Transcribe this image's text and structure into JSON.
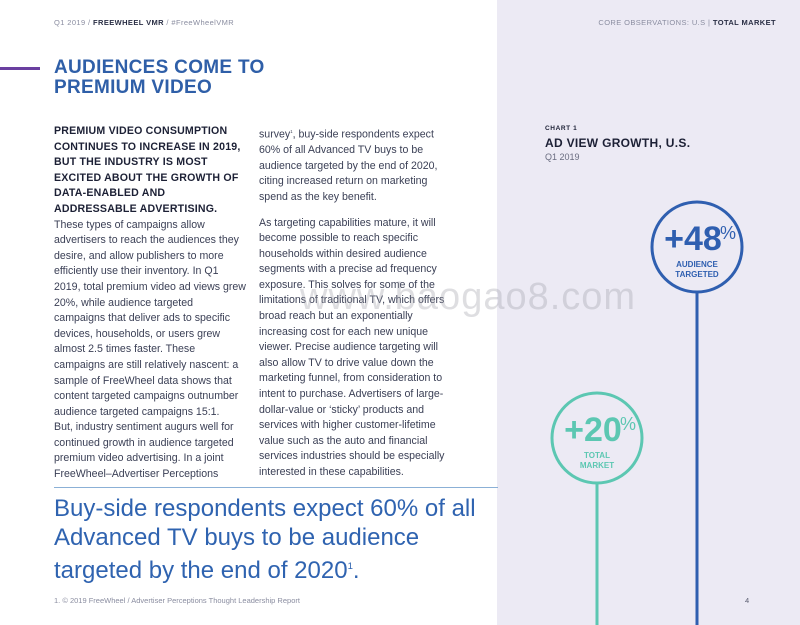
{
  "header": {
    "left_prefix": "Q1 2019 / ",
    "left_brand": "FREEWHEEL VMR",
    "left_suffix": " / #FreeWheelVMR",
    "right_prefix": "CORE OBSERVATIONS: U.S  |  ",
    "right_bold": "TOTAL MARKET"
  },
  "headline": "AUDIENCES COME TO PREMIUM VIDEO",
  "column1": {
    "lead": "PREMIUM VIDEO CONSUMPTION CONTINUES TO INCREASE IN 2019, BUT THE INDUSTRY IS MOST EXCITED ABOUT THE GROWTH OF DATA-ENABLED AND ADDRESSABLE ADVERTISING.",
    "body1": " These types of campaigns allow advertisers to reach the audiences they desire, and allow publishers to more efficiently use their inventory. In Q1 2019, total premium video ad views grew 20%, while audience targeted campaigns that deliver ads to specific devices, households, or users grew almost 2.5 times faster. These campaigns are still relatively nascent: a sample of FreeWheel data shows that content targeted campaigns outnumber audience targeted campaigns 15:1.",
    "body2": "But, industry sentiment augurs well for continued growth in audience targeted premium video advertising. In a joint FreeWheel–Advertiser Perceptions"
  },
  "column2": {
    "p1_a": "survey",
    "p1_sup": "1",
    "p1_b": ", buy-side respondents expect 60% of all Advanced TV buys to be audience targeted by the end of 2020, citing increased return on marketing spend as the key benefit.",
    "p2": "As targeting capabilities mature, it will become possible to reach specific households within desired audience segments with a precise ad frequency exposure. This solves for some of the limitations of traditional TV, which offers broad reach but an exponentially increasing cost for each new unique viewer. Precise audience targeting will also allow TV to drive value down the marketing funnel, from consideration to intent to purchase. Advertisers of large-dollar-value or ‘sticky’ products and services with higher customer-lifetime value such as the auto and financial services industries should be especially interested in these capabilities."
  },
  "pullquote": {
    "text": "Buy-side respondents expect 60% of all Advanced TV buys to be audience targeted by the end of 2020",
    "sup": "1",
    "end": "."
  },
  "footnote": "1. © 2019 FreeWheel / Advertiser Perceptions Thought Leadership Report",
  "page_number": "4",
  "watermark": "www.baogao8.com",
  "chart": {
    "kicker": "CHART 1",
    "title": "AD VIEW GROWTH, U.S.",
    "subtitle": "Q1 2019"
  },
  "chart_data": {
    "type": "bar",
    "title": "AD VIEW GROWTH, U.S.",
    "subtitle": "Q1 2019",
    "categories": [
      "AUDIENCE TARGETED",
      "TOTAL MARKET"
    ],
    "values": [
      48,
      20
    ],
    "value_labels": [
      "+48%",
      "+20%"
    ],
    "colors": [
      "#2f5fb0",
      "#5cc7b2"
    ],
    "ylim": [
      0,
      60
    ]
  }
}
